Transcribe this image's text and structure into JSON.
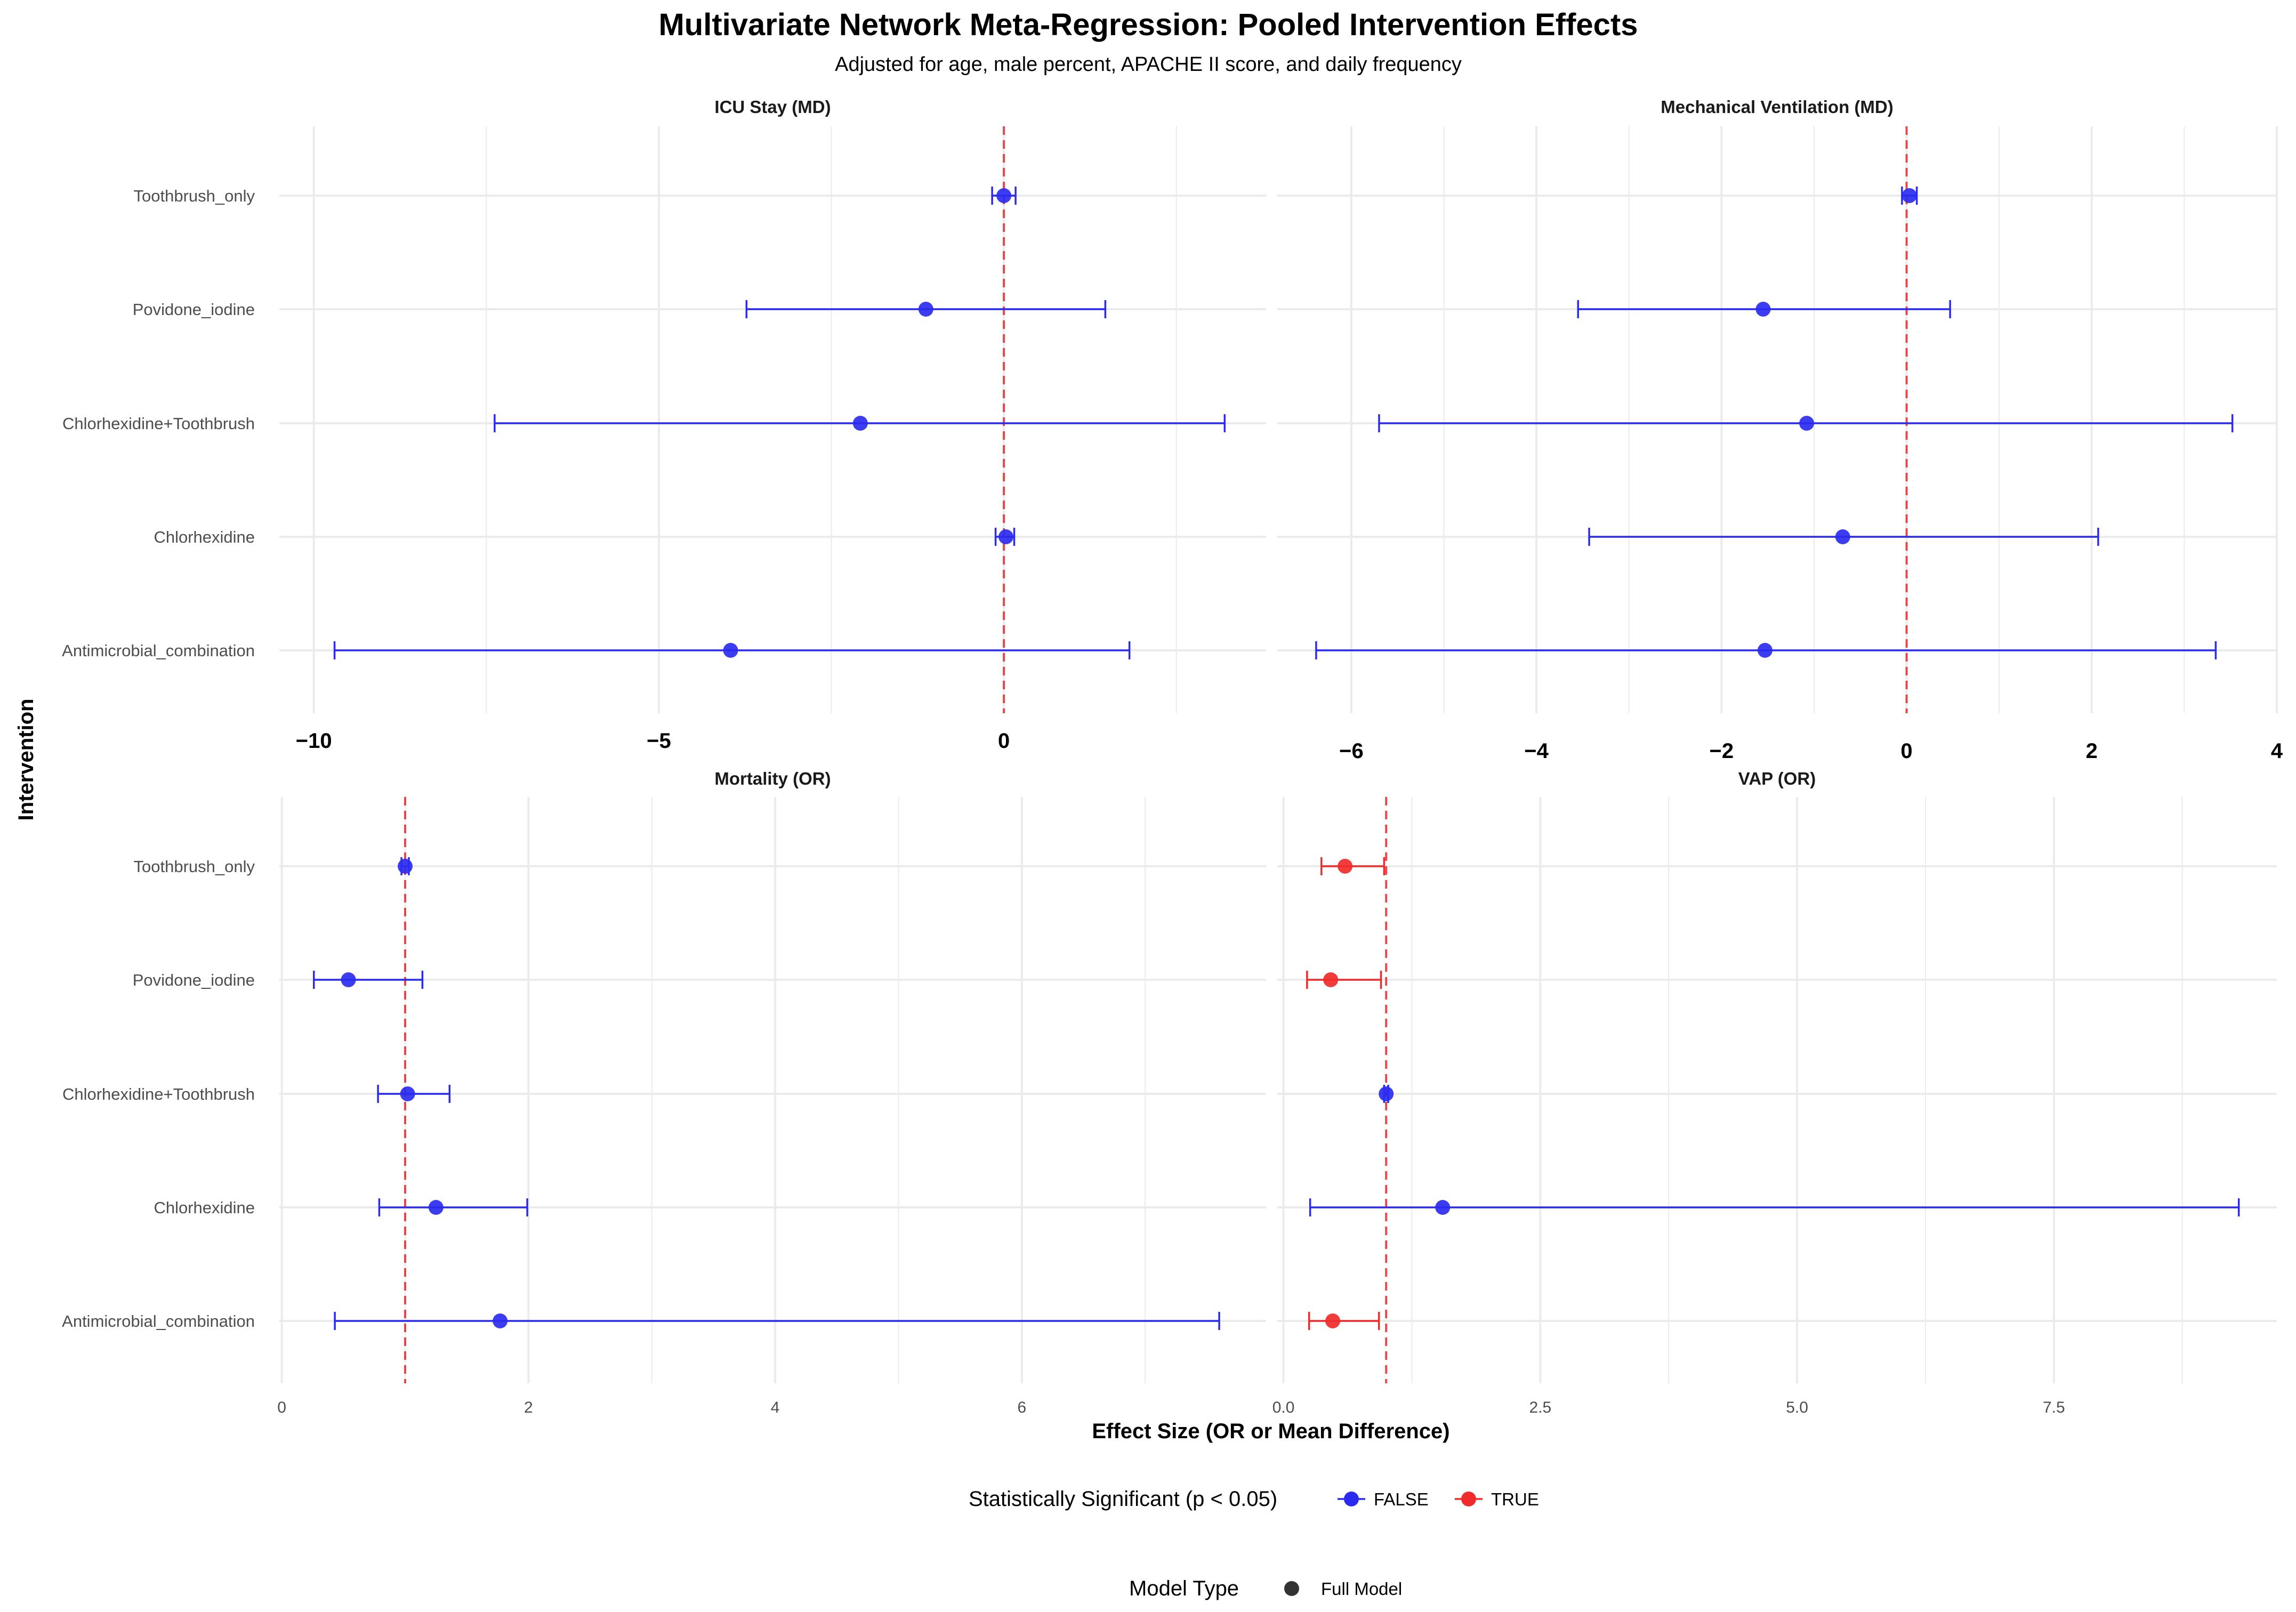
{
  "chart_data": {
    "type": "forest",
    "title": "Multivariate Network Meta-Regression: Pooled Intervention Effects",
    "subtitle": "Adjusted for age, male percent, APACHE II score, and daily frequency",
    "xlabel": "Effect Size (OR or Mean Difference)",
    "ylabel": "Intervention",
    "categories": [
      "Toothbrush_only",
      "Povidone_iodine",
      "Chlorhexidine+Toothbrush",
      "Chlorhexidine",
      "Antimicrobial_combination"
    ],
    "colors": {
      "sig_false": "#2b2bf0",
      "sig_true": "#f02b2b",
      "reference_line": "#e8474a",
      "grid": "#ebebeb",
      "legend_shape": "#333333"
    },
    "legend": {
      "significance_title": "Statistically Significant (p < 0.05)",
      "significance_items": [
        {
          "label": "FALSE",
          "color": "#2b2bf0"
        },
        {
          "label": "TRUE",
          "color": "#f02b2b"
        }
      ],
      "model_title": "Model Type",
      "model_items": [
        {
          "label": "Full Model"
        }
      ]
    },
    "panels": [
      {
        "id": "icu",
        "title": "ICU Stay (MD)",
        "xlim": [
          -10.5,
          3.8
        ],
        "reference": 0,
        "ticks": [
          {
            "v": -10,
            "label": "−10"
          },
          {
            "v": -5,
            "label": "−5"
          },
          {
            "v": 0,
            "label": "0"
          }
        ],
        "minor": [
          -7.5,
          -2.5,
          2.5
        ],
        "estimates": [
          {
            "category": "Toothbrush_only",
            "est": 0.0,
            "lo": -0.17,
            "hi": 0.17,
            "sig": false
          },
          {
            "category": "Povidone_iodine",
            "est": -1.13,
            "lo": -3.73,
            "hi": 1.47,
            "sig": false
          },
          {
            "category": "Chlorhexidine+Toothbrush",
            "est": -2.08,
            "lo": -7.38,
            "hi": 3.2,
            "sig": false
          },
          {
            "category": "Chlorhexidine",
            "est": 0.03,
            "lo": -0.12,
            "hi": 0.15,
            "sig": false
          },
          {
            "category": "Antimicrobial_combination",
            "est": -3.96,
            "lo": -9.7,
            "hi": 1.82,
            "sig": false
          }
        ]
      },
      {
        "id": "mv",
        "title": "Mechanical Ventilation (MD)",
        "xlim": [
          -6.8,
          4.0
        ],
        "reference": 0,
        "ticks": [
          {
            "v": -6,
            "label": "−6"
          },
          {
            "v": -4,
            "label": "−4"
          },
          {
            "v": -2,
            "label": "−2"
          },
          {
            "v": 0,
            "label": "0"
          },
          {
            "v": 2,
            "label": "2"
          },
          {
            "v": 4,
            "label": "4"
          }
        ],
        "minor": [
          -5,
          -3,
          -1,
          1,
          3
        ],
        "estimates": [
          {
            "category": "Toothbrush_only",
            "est": 0.03,
            "lo": -0.05,
            "hi": 0.11,
            "sig": false
          },
          {
            "category": "Povidone_iodine",
            "est": -1.55,
            "lo": -3.55,
            "hi": 0.47,
            "sig": false
          },
          {
            "category": "Chlorhexidine+Toothbrush",
            "est": -1.08,
            "lo": -5.7,
            "hi": 3.52,
            "sig": false
          },
          {
            "category": "Chlorhexidine",
            "est": -0.69,
            "lo": -3.43,
            "hi": 2.07,
            "sig": false
          },
          {
            "category": "Antimicrobial_combination",
            "est": -1.53,
            "lo": -6.38,
            "hi": 3.34,
            "sig": false
          }
        ]
      },
      {
        "id": "mort",
        "title": "Mortality (OR)",
        "xlim": [
          -0.02,
          7.98
        ],
        "reference": 1,
        "ticks": [
          {
            "v": 0,
            "label": "0"
          },
          {
            "v": 2,
            "label": "2"
          },
          {
            "v": 4,
            "label": "4"
          },
          {
            "v": 6,
            "label": "6"
          }
        ],
        "minor": [
          1,
          3,
          5,
          7
        ],
        "estimates": [
          {
            "category": "Toothbrush_only",
            "est": 1.0,
            "lo": 0.97,
            "hi": 1.03,
            "sig": false
          },
          {
            "category": "Povidone_iodine",
            "est": 0.54,
            "lo": 0.26,
            "hi": 1.14,
            "sig": false
          },
          {
            "category": "Chlorhexidine+Toothbrush",
            "est": 1.02,
            "lo": 0.78,
            "hi": 1.36,
            "sig": false
          },
          {
            "category": "Chlorhexidine",
            "est": 1.25,
            "lo": 0.79,
            "hi": 1.99,
            "sig": false
          },
          {
            "category": "Antimicrobial_combination",
            "est": 1.77,
            "lo": 0.43,
            "hi": 7.6,
            "sig": false
          }
        ]
      },
      {
        "id": "vap",
        "title": "VAP (OR)",
        "xlim": [
          -0.06,
          9.67
        ],
        "reference": 1,
        "ticks": [
          {
            "v": 0,
            "label": "0.0"
          },
          {
            "v": 2.5,
            "label": "2.5"
          },
          {
            "v": 5,
            "label": "5.0"
          },
          {
            "v": 7.5,
            "label": "7.5"
          }
        ],
        "minor": [
          1.25,
          3.75,
          6.25,
          8.75
        ],
        "estimates": [
          {
            "category": "Toothbrush_only",
            "est": 0.6,
            "lo": 0.37,
            "hi": 0.98,
            "sig": true
          },
          {
            "category": "Povidone_iodine",
            "est": 0.46,
            "lo": 0.23,
            "hi": 0.95,
            "sig": true
          },
          {
            "category": "Chlorhexidine+Toothbrush",
            "est": 1.0,
            "lo": 0.98,
            "hi": 1.02,
            "sig": false
          },
          {
            "category": "Chlorhexidine",
            "est": 1.55,
            "lo": 0.26,
            "hi": 9.3,
            "sig": false
          },
          {
            "category": "Antimicrobial_combination",
            "est": 0.48,
            "lo": 0.25,
            "hi": 0.93,
            "sig": true
          }
        ]
      }
    ]
  }
}
